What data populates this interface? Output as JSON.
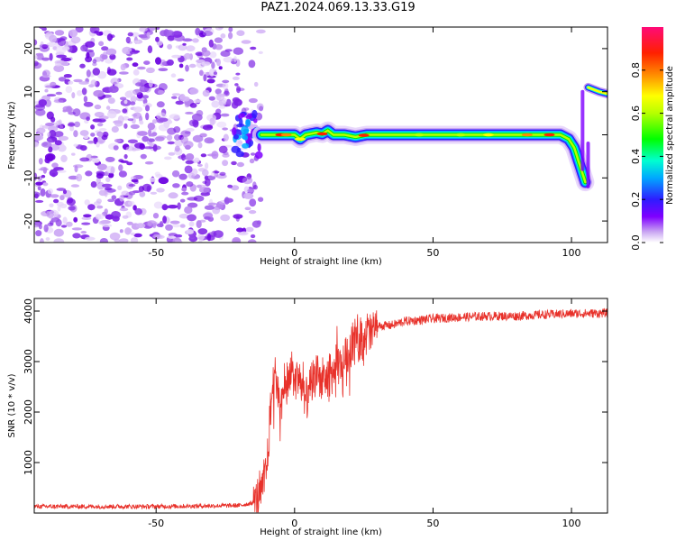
{
  "title": "PAZ1.2024.069.13.33.G19",
  "chart_data": [
    {
      "type": "heatmap",
      "xlabel": "Height of straight line (km)",
      "ylabel": "Frequency (Hz)",
      "xlim": [
        -94,
        113
      ],
      "ylim": [
        -25,
        25
      ],
      "xticks": [
        -50,
        0,
        50,
        100
      ],
      "yticks": [
        -20,
        -10,
        0,
        10,
        20
      ],
      "colorbar": {
        "label": "Normalized spectral amplitude",
        "range": [
          0.0,
          1.0
        ],
        "ticks": [
          0.0,
          0.2,
          0.4,
          0.6,
          0.8
        ],
        "tick_labels": [
          "0.0",
          "0.2",
          "0.4",
          "0.6",
          "0.8"
        ]
      },
      "ridge": {
        "x": [
          -12,
          -8,
          -4,
          0,
          2,
          4,
          8,
          10,
          12,
          14,
          18,
          22,
          26,
          30,
          40,
          50,
          60,
          70,
          80,
          90,
          96,
          99,
          101,
          103,
          105
        ],
        "y": [
          0,
          0,
          0,
          0,
          -1,
          0,
          0.5,
          0.2,
          1,
          0,
          0,
          -0.5,
          0,
          0,
          0,
          0,
          0,
          0,
          0,
          0,
          0,
          -1,
          -3,
          -7,
          -11
        ]
      },
      "upper_branch": {
        "x": [
          106,
          108,
          110,
          113
        ],
        "y": [
          11,
          10.5,
          10,
          9.5
        ]
      },
      "grid": false
    },
    {
      "type": "line",
      "xlabel": "Height of straight line (km)",
      "ylabel": "SNR (10 * v/v)",
      "xlim": [
        -94,
        113
      ],
      "ylim": [
        0,
        4250
      ],
      "xticks": [
        -50,
        0,
        50,
        100
      ],
      "yticks": [
        1000,
        2000,
        3000,
        4000
      ],
      "series": [
        {
          "color": "#e8312a",
          "x": [
            -94,
            -50,
            -20,
            -15,
            -12,
            -10,
            -9,
            -8,
            -7,
            -6,
            -5,
            -4,
            -2,
            0,
            2,
            4,
            6,
            8,
            10,
            12,
            14,
            16,
            18,
            20,
            22,
            24,
            26,
            28,
            30,
            35,
            40,
            45,
            50,
            60,
            70,
            80,
            90,
            100,
            113
          ],
          "y": [
            130,
            130,
            150,
            200,
            400,
            900,
            1700,
            2500,
            2900,
            2300,
            2000,
            2500,
            2600,
            2700,
            2600,
            2200,
            2500,
            2800,
            2600,
            2700,
            2800,
            2900,
            3000,
            3300,
            3400,
            3500,
            3550,
            3650,
            3700,
            3720,
            3800,
            3820,
            3850,
            3880,
            3900,
            3900,
            3930,
            3950,
            3960
          ]
        }
      ],
      "grid": false
    }
  ]
}
